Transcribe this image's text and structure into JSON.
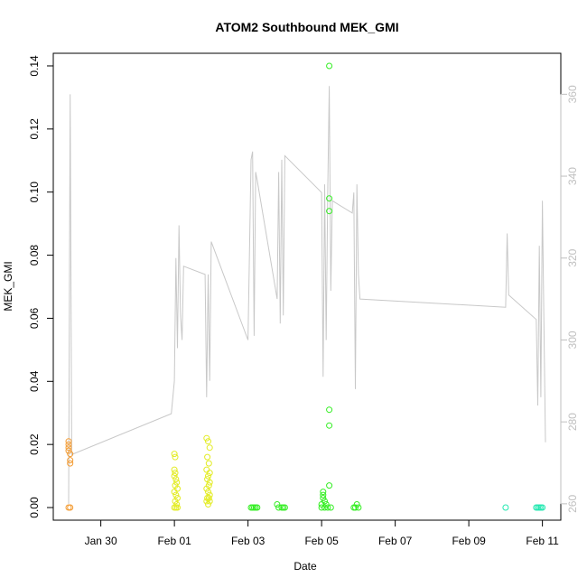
{
  "chart_data": {
    "type": "scatter",
    "title": "ATOM2 Southbound MEK_GMI",
    "xlabel": "Date",
    "ylabel": "MEK_GMI",
    "x_tick_labels": [
      "Jan 30",
      "Feb 01",
      "Feb 03",
      "Feb 05",
      "Feb 07",
      "Feb 09",
      "Feb 11"
    ],
    "x_ticks": [
      "2017-01-30",
      "2017-02-01",
      "2017-02-03",
      "2017-02-05",
      "2017-02-07",
      "2017-02-09",
      "2017-02-11"
    ],
    "xlim": [
      "2017-01-28T17:00",
      "2017-02-11T12:00"
    ],
    "ylim": [
      -0.004,
      0.144
    ],
    "y_ticks": [
      0.0,
      0.02,
      0.04,
      0.06,
      0.08,
      0.1,
      0.12,
      0.14
    ],
    "y_tick_labels": [
      "0.00",
      "0.02",
      "0.04",
      "0.06",
      "0.08",
      "0.10",
      "0.12",
      "0.14"
    ],
    "y2_ticks": [
      260,
      280,
      300,
      320,
      340,
      360
    ],
    "y2_tick_labels": [
      "260",
      "280",
      "300",
      "320",
      "340",
      "360"
    ],
    "y2lim": [
      256,
      370
    ],
    "grid": false,
    "colors": {
      "axis": "#000000",
      "secondary_axis": "#bfbfbf",
      "secondary_line": "#c8c8c8"
    },
    "series": [
      {
        "kind": "points",
        "color": "#f39c34",
        "points": [
          [
            "2017-01-29T03:00",
            0.021
          ],
          [
            "2017-01-29T03:00",
            0.02
          ],
          [
            "2017-01-29T03:00",
            0.019
          ],
          [
            "2017-01-29T03:00",
            0.018
          ],
          [
            "2017-01-29T04:00",
            0.017
          ],
          [
            "2017-01-29T04:00",
            0.015
          ],
          [
            "2017-01-29T04:00",
            0.014
          ],
          [
            "2017-01-29T03:00",
            0.0
          ],
          [
            "2017-01-29T04:00",
            0.0
          ]
        ]
      },
      {
        "kind": "points",
        "color": "#e3ec24",
        "points": [
          [
            "2017-02-01T00:00",
            0.017
          ],
          [
            "2017-02-01T00:30",
            0.016
          ],
          [
            "2017-02-01T00:00",
            0.012
          ],
          [
            "2017-02-01T00:30",
            0.011
          ],
          [
            "2017-02-01T00:00",
            0.01
          ],
          [
            "2017-02-01T01:00",
            0.009
          ],
          [
            "2017-02-01T01:30",
            0.008
          ],
          [
            "2017-02-01T00:30",
            0.007
          ],
          [
            "2017-02-01T02:00",
            0.006
          ],
          [
            "2017-02-01T00:00",
            0.005
          ],
          [
            "2017-02-01T01:00",
            0.004
          ],
          [
            "2017-02-01T02:00",
            0.003
          ],
          [
            "2017-02-01T00:30",
            0.002
          ],
          [
            "2017-02-01T01:30",
            0.001
          ],
          [
            "2017-02-01T00:00",
            0.0
          ],
          [
            "2017-02-01T02:00",
            0.0
          ],
          [
            "2017-02-01T01:00",
            0.0
          ],
          [
            "2017-02-01T21:00",
            0.022
          ],
          [
            "2017-02-01T22:00",
            0.021
          ],
          [
            "2017-02-01T23:00",
            0.019
          ],
          [
            "2017-02-01T21:30",
            0.016
          ],
          [
            "2017-02-01T22:30",
            0.014
          ],
          [
            "2017-02-01T21:00",
            0.012
          ],
          [
            "2017-02-01T23:00",
            0.011
          ],
          [
            "2017-02-01T22:00",
            0.01
          ],
          [
            "2017-02-01T21:30",
            0.009
          ],
          [
            "2017-02-01T23:00",
            0.008
          ],
          [
            "2017-02-01T22:30",
            0.007
          ],
          [
            "2017-02-01T21:00",
            0.006
          ],
          [
            "2017-02-01T22:00",
            0.005
          ],
          [
            "2017-02-01T23:00",
            0.004
          ],
          [
            "2017-02-01T21:30",
            0.003
          ],
          [
            "2017-02-01T22:30",
            0.003
          ],
          [
            "2017-02-01T23:00",
            0.002
          ],
          [
            "2017-02-01T21:00",
            0.002
          ],
          [
            "2017-02-01T22:00",
            0.001
          ]
        ]
      },
      {
        "kind": "points",
        "color": "#33ee22",
        "points": [
          [
            "2017-02-03T02:00",
            0.0
          ],
          [
            "2017-02-03T04:00",
            0.0
          ],
          [
            "2017-02-03T06:00",
            0.0
          ],
          [
            "2017-02-03T03:00",
            0.0
          ],
          [
            "2017-02-03T05:00",
            0.0
          ],
          [
            "2017-02-03T19:00",
            0.001
          ],
          [
            "2017-02-03T20:00",
            0.0
          ],
          [
            "2017-02-03T22:00",
            0.0
          ],
          [
            "2017-02-03T23:00",
            0.0
          ],
          [
            "2017-02-04T00:00",
            0.0
          ],
          [
            "2017-02-05T05:00",
            0.14
          ],
          [
            "2017-02-05T05:00",
            0.098
          ],
          [
            "2017-02-05T05:00",
            0.094
          ],
          [
            "2017-02-05T05:00",
            0.031
          ],
          [
            "2017-02-05T05:00",
            0.026
          ],
          [
            "2017-02-05T05:00",
            0.007
          ],
          [
            "2017-02-05T01:00",
            0.005
          ],
          [
            "2017-02-05T01:00",
            0.004
          ],
          [
            "2017-02-05T01:00",
            0.003
          ],
          [
            "2017-02-05T02:00",
            0.002
          ],
          [
            "2017-02-05T00:00",
            0.001
          ],
          [
            "2017-02-05T03:00",
            0.001
          ],
          [
            "2017-02-05T00:00",
            0.0
          ],
          [
            "2017-02-05T02:00",
            0.0
          ],
          [
            "2017-02-05T04:00",
            0.0
          ],
          [
            "2017-02-05T06:00",
            0.0
          ],
          [
            "2017-02-05T21:00",
            0.0
          ],
          [
            "2017-02-05T22:00",
            0.0
          ],
          [
            "2017-02-05T23:00",
            0.001
          ],
          [
            "2017-02-06T00:00",
            0.0
          ]
        ]
      },
      {
        "kind": "points",
        "color": "#22e8b0",
        "points": [
          [
            "2017-02-10T00:00",
            0.0
          ],
          [
            "2017-02-10T20:00",
            0.0
          ],
          [
            "2017-02-10T21:00",
            0.0
          ],
          [
            "2017-02-10T22:00",
            0.0
          ],
          [
            "2017-02-10T23:00",
            0.0
          ],
          [
            "2017-02-11T00:00",
            0.0
          ]
        ]
      },
      {
        "kind": "line",
        "axis": "right",
        "color": "#c8c8c8",
        "points": [
          [
            "2017-01-29T03:00",
            260
          ],
          [
            "2017-01-29T04:00",
            360
          ],
          [
            "2017-01-29T05:00",
            272
          ],
          [
            "2017-01-31T22:00",
            282
          ],
          [
            "2017-02-01T00:00",
            290
          ],
          [
            "2017-02-01T01:00",
            320
          ],
          [
            "2017-02-01T02:00",
            298
          ],
          [
            "2017-02-01T03:00",
            328
          ],
          [
            "2017-02-01T04:00",
            306
          ],
          [
            "2017-02-01T05:00",
            300
          ],
          [
            "2017-02-01T06:00",
            318
          ],
          [
            "2017-02-01T20:00",
            316
          ],
          [
            "2017-02-01T21:00",
            286
          ],
          [
            "2017-02-01T22:00",
            316
          ],
          [
            "2017-02-01T23:00",
            290
          ],
          [
            "2017-02-02T00:00",
            324
          ],
          [
            "2017-02-03T00:00",
            300
          ],
          [
            "2017-02-03T02:00",
            344
          ],
          [
            "2017-02-03T03:00",
            346
          ],
          [
            "2017-02-03T04:00",
            301
          ],
          [
            "2017-02-03T05:00",
            341
          ],
          [
            "2017-02-03T06:00",
            339
          ],
          [
            "2017-02-03T19:00",
            310
          ],
          [
            "2017-02-03T20:00",
            341
          ],
          [
            "2017-02-03T21:00",
            304
          ],
          [
            "2017-02-03T22:00",
            344
          ],
          [
            "2017-02-03T23:00",
            306
          ],
          [
            "2017-02-04T00:00",
            345
          ],
          [
            "2017-02-05T00:00",
            336
          ],
          [
            "2017-02-05T01:00",
            291
          ],
          [
            "2017-02-05T02:00",
            338
          ],
          [
            "2017-02-05T03:00",
            300
          ],
          [
            "2017-02-05T04:00",
            336
          ],
          [
            "2017-02-05T05:00",
            362
          ],
          [
            "2017-02-05T06:00",
            312
          ],
          [
            "2017-02-05T07:00",
            334
          ],
          [
            "2017-02-05T20:00",
            331
          ],
          [
            "2017-02-05T21:00",
            336
          ],
          [
            "2017-02-05T22:00",
            288
          ],
          [
            "2017-02-05T23:00",
            338
          ],
          [
            "2017-02-06T00:00",
            316
          ],
          [
            "2017-02-06T01:00",
            310
          ],
          [
            "2017-02-10T00:00",
            308
          ],
          [
            "2017-02-10T01:00",
            326
          ],
          [
            "2017-02-10T02:00",
            311
          ],
          [
            "2017-02-10T20:00",
            305
          ],
          [
            "2017-02-10T21:00",
            284
          ],
          [
            "2017-02-10T22:00",
            323
          ],
          [
            "2017-02-10T23:00",
            286
          ],
          [
            "2017-02-11T00:00",
            334
          ],
          [
            "2017-02-11T01:00",
            304
          ],
          [
            "2017-02-11T02:00",
            275
          ]
        ]
      }
    ]
  }
}
